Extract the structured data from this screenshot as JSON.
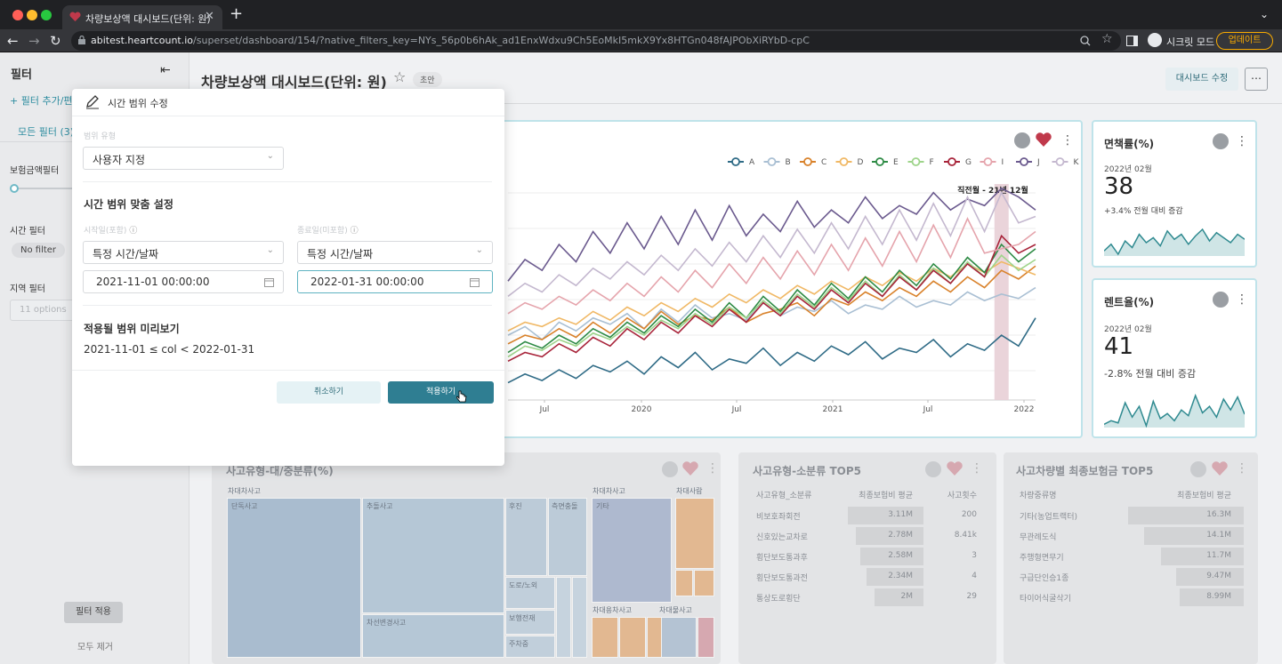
{
  "browser": {
    "tab_title": "차량보상액 대시보드(단위: 원)",
    "url_host": "abitest.heartcount.io",
    "url_path": "/superset/dashboard/154/?native_filters_key=NYs_56p0b6hAk_ad1EnxWdxu9Ch5EoMkI5mkX9Yx8HTGn048fAJPObXiRYbD-cpC",
    "incognito_label": "시크릿 모드",
    "update_label": "업데이트"
  },
  "sidebar": {
    "title": "필터",
    "add_filter": "필터 추가/편",
    "all_filters_tab": "모든 필터 (3)",
    "filters": [
      {
        "label": "보험금액필터"
      },
      {
        "label": "시간 필터",
        "value": "No filter"
      },
      {
        "label": "지역 필터",
        "placeholder": "11 options"
      }
    ],
    "apply_label": "필터 적용",
    "clear_label": "모두 제거"
  },
  "header": {
    "title": "차량보상액 대시보드(단위: 원)",
    "badge": "초안",
    "edit_button": "대시보드 수정",
    "more_icon": "ellipsis-icon"
  },
  "modal": {
    "title": "시간 범위 수정",
    "range_type_label": "범위 유형",
    "range_type_value": "사용자 지정",
    "section_title": "시간 범위 맞춤 설정",
    "start_label": "시작일(포함)",
    "end_label": "종료일(미포함)",
    "start_type": "특정 시간/날짜",
    "end_type": "특정 시간/날짜",
    "start_value": "2021-11-01 00:00:00",
    "end_value": "2022-01-31 00:00:00",
    "preview_title": "적용될 범위 미리보기",
    "preview_value": "2021-11-01 ≤ col < 2022-01-31",
    "cancel_label": "취소하기",
    "apply_label": "적용하기"
  },
  "line_chart": {
    "annotation": "직전월 - 21년 12월",
    "legend": [
      {
        "name": "A",
        "color": "#2f6b86"
      },
      {
        "name": "B",
        "color": "#a9bfd3"
      },
      {
        "name": "C",
        "color": "#d9822b"
      },
      {
        "name": "D",
        "color": "#f0b865"
      },
      {
        "name": "E",
        "color": "#2e8b45"
      },
      {
        "name": "F",
        "color": "#9ed48a"
      },
      {
        "name": "G",
        "color": "#a8243a"
      },
      {
        "name": "I",
        "color": "#e5a4ac"
      },
      {
        "name": "J",
        "color": "#6b5a8e"
      },
      {
        "name": "K",
        "color": "#c4b8cf"
      }
    ],
    "x_ticks": [
      "Jul",
      "2020",
      "Jul",
      "2021",
      "Jul",
      "2022"
    ]
  },
  "chart_data": {
    "type": "line",
    "x_domain": [
      "2019-02",
      "2022-02"
    ],
    "x_ticks": [
      "Jul",
      "2020",
      "Jul",
      "2021",
      "Jul",
      "2022"
    ],
    "ylim": [
      0,
      100
    ],
    "series": [
      {
        "name": "A",
        "values": [
          8,
          12,
          9,
          14,
          10,
          16,
          13,
          18,
          12,
          20,
          15,
          22,
          14,
          19,
          17,
          24,
          16,
          22,
          18,
          25,
          21,
          27,
          19,
          24,
          22,
          28,
          20,
          26,
          23,
          30,
          25,
          38
        ]
      },
      {
        "name": "B",
        "values": [
          30,
          34,
          28,
          36,
          32,
          38,
          35,
          40,
          33,
          42,
          36,
          44,
          38,
          40,
          37,
          45,
          39,
          43,
          41,
          46,
          40,
          44,
          42,
          48,
          43,
          46,
          44,
          50,
          46,
          49,
          47,
          52
        ]
      },
      {
        "name": "C",
        "values": [
          26,
          30,
          28,
          33,
          29,
          36,
          31,
          38,
          33,
          41,
          35,
          39,
          37,
          43,
          36,
          40,
          42,
          45,
          39,
          47,
          44,
          50,
          46,
          52,
          48,
          55,
          50,
          57,
          52,
          60,
          56,
          62
        ]
      },
      {
        "name": "D",
        "values": [
          32,
          36,
          34,
          38,
          35,
          41,
          37,
          43,
          39,
          45,
          41,
          47,
          43,
          49,
          45,
          51,
          47,
          53,
          49,
          55,
          51,
          57,
          53,
          59,
          55,
          61,
          57,
          63,
          59,
          64,
          61,
          58
        ]
      },
      {
        "name": "E",
        "values": [
          22,
          27,
          24,
          30,
          26,
          33,
          29,
          36,
          31,
          39,
          34,
          42,
          36,
          45,
          38,
          48,
          41,
          51,
          44,
          54,
          47,
          57,
          50,
          60,
          53,
          63,
          56,
          66,
          59,
          72,
          64,
          70
        ]
      },
      {
        "name": "F",
        "values": [
          20,
          25,
          23,
          28,
          25,
          31,
          28,
          34,
          30,
          37,
          33,
          40,
          35,
          43,
          38,
          46,
          40,
          49,
          43,
          52,
          46,
          55,
          48,
          58,
          51,
          61,
          54,
          64,
          57,
          67,
          60,
          65
        ]
      },
      {
        "name": "G",
        "values": [
          18,
          22,
          20,
          26,
          22,
          29,
          25,
          33,
          28,
          36,
          31,
          39,
          34,
          42,
          36,
          45,
          39,
          48,
          42,
          51,
          45,
          54,
          48,
          57,
          51,
          60,
          54,
          63,
          57,
          76,
          68,
          72
        ]
      },
      {
        "name": "I",
        "values": [
          40,
          45,
          42,
          48,
          44,
          51,
          46,
          54,
          48,
          57,
          50,
          60,
          52,
          63,
          54,
          66,
          56,
          69,
          58,
          72,
          60,
          75,
          62,
          78,
          64,
          81,
          66,
          84,
          68,
          70,
          72,
          78
        ]
      },
      {
        "name": "J",
        "values": [
          55,
          65,
          60,
          72,
          64,
          78,
          68,
          82,
          70,
          85,
          72,
          88,
          74,
          90,
          76,
          86,
          78,
          92,
          80,
          88,
          82,
          94,
          84,
          90,
          86,
          96,
          88,
          93,
          90,
          98,
          94,
          88
        ]
      },
      {
        "name": "K",
        "values": [
          48,
          54,
          50,
          58,
          53,
          61,
          56,
          64,
          58,
          67,
          60,
          70,
          62,
          73,
          64,
          76,
          66,
          79,
          68,
          82,
          70,
          85,
          72,
          88,
          74,
          91,
          76,
          94,
          78,
          96,
          82,
          85
        ]
      }
    ]
  },
  "kpis": [
    {
      "title": "면책률(%)",
      "period": "2022년 02월",
      "value": "38",
      "delta": "+3.4% 전월 대비 증감"
    },
    {
      "title": "렌트율(%)",
      "period": "2022년 02월",
      "value": "41",
      "delta": "-2.8% 전월 대비 증감"
    }
  ],
  "sparklines": [
    [
      40,
      44,
      38,
      46,
      42,
      50,
      45,
      48,
      43,
      52,
      47,
      50,
      44,
      49,
      53,
      46,
      51,
      48,
      45,
      50,
      47
    ],
    [
      30,
      35,
      32,
      60,
      40,
      55,
      28,
      62,
      38,
      45,
      35,
      50,
      42,
      70,
      46,
      55,
      40,
      65,
      50,
      68,
      44
    ]
  ],
  "bottom": {
    "treemap_title": "사고유형-대/중분류(%)",
    "treemap_labels": {
      "car_to_car": "차대차사고",
      "car_person": "차대사람",
      "car_object": "차대물사고",
      "single": "단독사고",
      "rear": "추돌사고",
      "side": "측면충돌",
      "etc1": "후진",
      "etc2": "기타",
      "other": "차대용차사고",
      "item1": "도로/노외",
      "item2": "보행전재",
      "item3": "차선변경사고",
      "item4": "주차중",
      "item5": "기타"
    },
    "table1_title": "사고유형-소분류 TOP5",
    "table1_headers": [
      "사고유형_소분류",
      "최종보험비 평균",
      "사고횟수"
    ],
    "table1_rows": [
      [
        "비보호좌회전",
        "3.11M",
        "200"
      ],
      [
        "신호있는교차로",
        "2.78M",
        "8.41k"
      ],
      [
        "횡단보도통과후",
        "2.58M",
        "3"
      ],
      [
        "횡단보도통과전",
        "2.34M",
        "4"
      ],
      [
        "통상도로횡단",
        "2M",
        "29"
      ]
    ],
    "table2_title": "사고차량별 최종보험금 TOP5",
    "table2_headers": [
      "차량중류명",
      "최종보험비 평균"
    ],
    "table2_rows": [
      [
        "기타(농업트랙터)",
        "16.3M"
      ],
      [
        "무관례도식",
        "14.1M"
      ],
      [
        "주행형면무기",
        "11.7M"
      ],
      [
        "구급단인승1종",
        "9.47M"
      ],
      [
        "타이어식굴삭기",
        "8.99M"
      ]
    ]
  }
}
